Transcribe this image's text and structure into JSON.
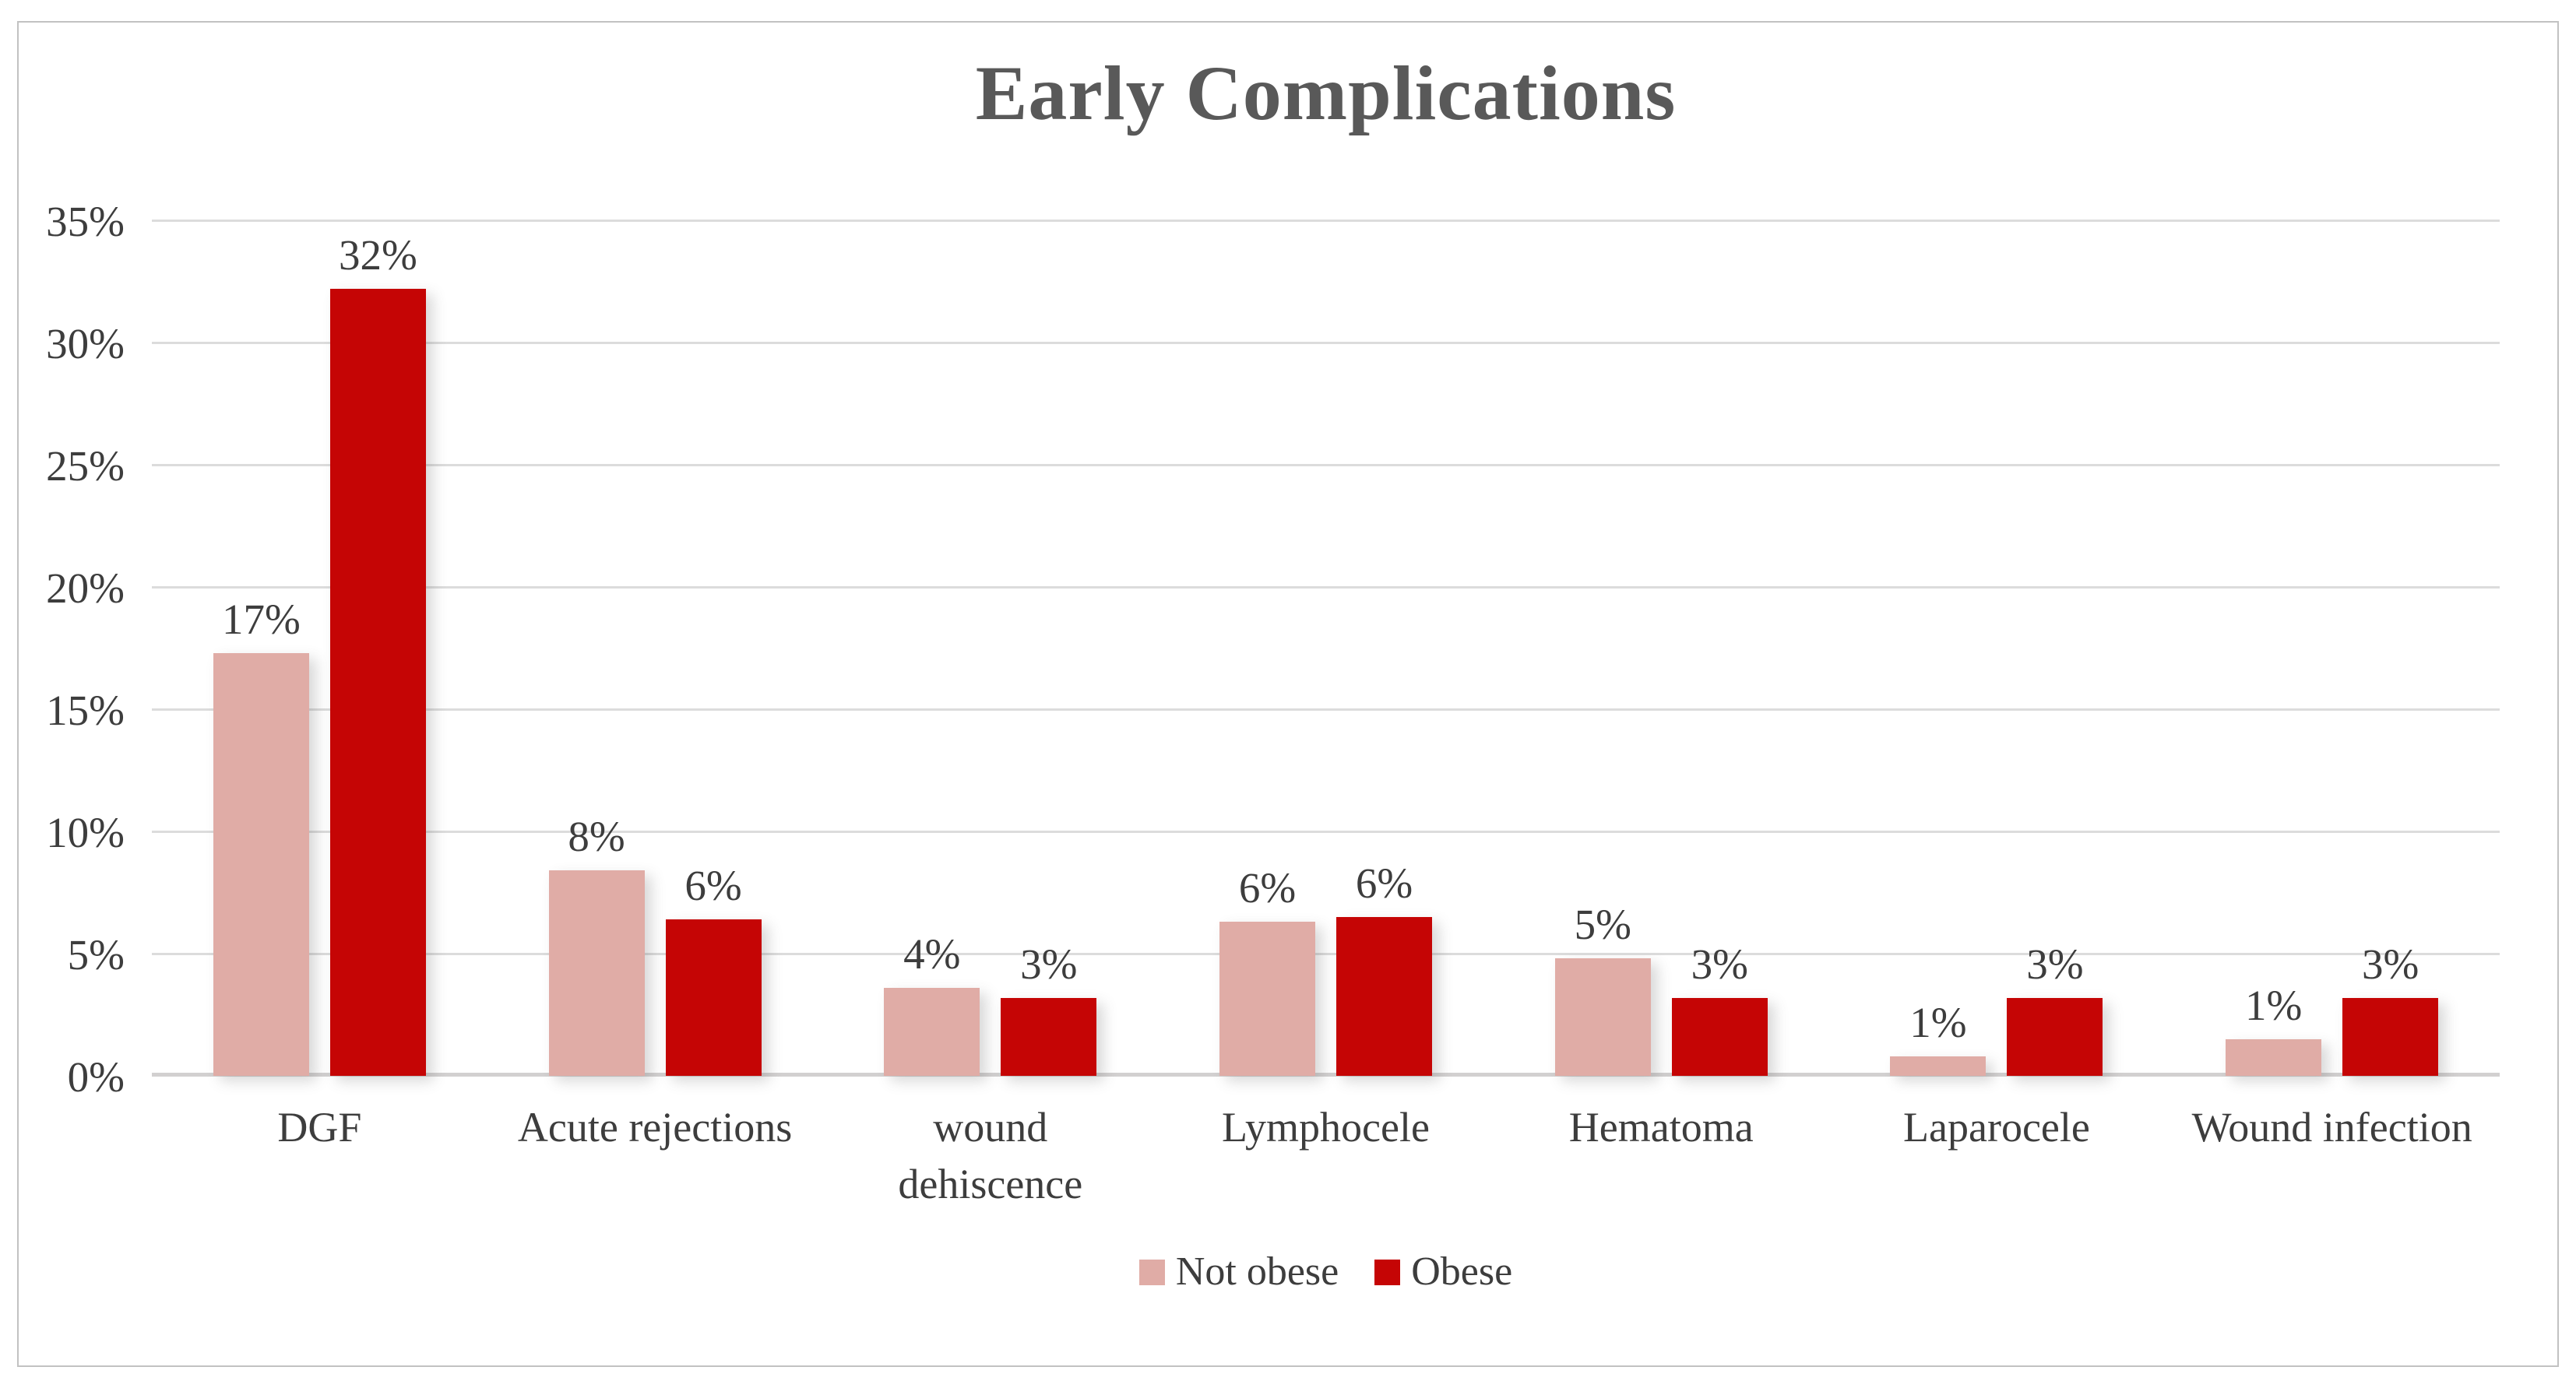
{
  "chart_data": {
    "type": "bar",
    "title": "Early Complications",
    "categories": [
      "DGF",
      "Acute rejections",
      "wound dehiscence",
      "Lymphocele",
      "Hematoma",
      "Laparocele",
      "Wound infection"
    ],
    "series": [
      {
        "name": "Not obese",
        "color": "#e0aca6",
        "values": [
          17.3,
          8.4,
          3.6,
          6.3,
          4.8,
          0.8,
          1.5
        ],
        "labels": [
          "17%",
          "8%",
          "4%",
          "6%",
          "5%",
          "1%",
          "1%"
        ]
      },
      {
        "name": "Obese",
        "color": "#c50505",
        "values": [
          32.2,
          6.4,
          3.2,
          6.5,
          3.2,
          3.2,
          3.2
        ],
        "labels": [
          "32%",
          "6%",
          "3%",
          "6%",
          "3%",
          "3%",
          "3%"
        ]
      }
    ],
    "xlabel": "",
    "ylabel": "",
    "ylim": [
      0,
      35
    ],
    "y_tick_step": 5,
    "y_ticks": [
      "0%",
      "5%",
      "10%",
      "15%",
      "20%",
      "25%",
      "30%",
      "35%"
    ],
    "grid": true,
    "legend_position": "bottom-center",
    "styles": {
      "title_color": "#595959",
      "text_color": "#3d3d3d",
      "gridline_color": "#dcdcdc",
      "axis_line_color": "#d2d0d0",
      "border_color": "#c2c2c2",
      "background": "#ffffff"
    }
  }
}
